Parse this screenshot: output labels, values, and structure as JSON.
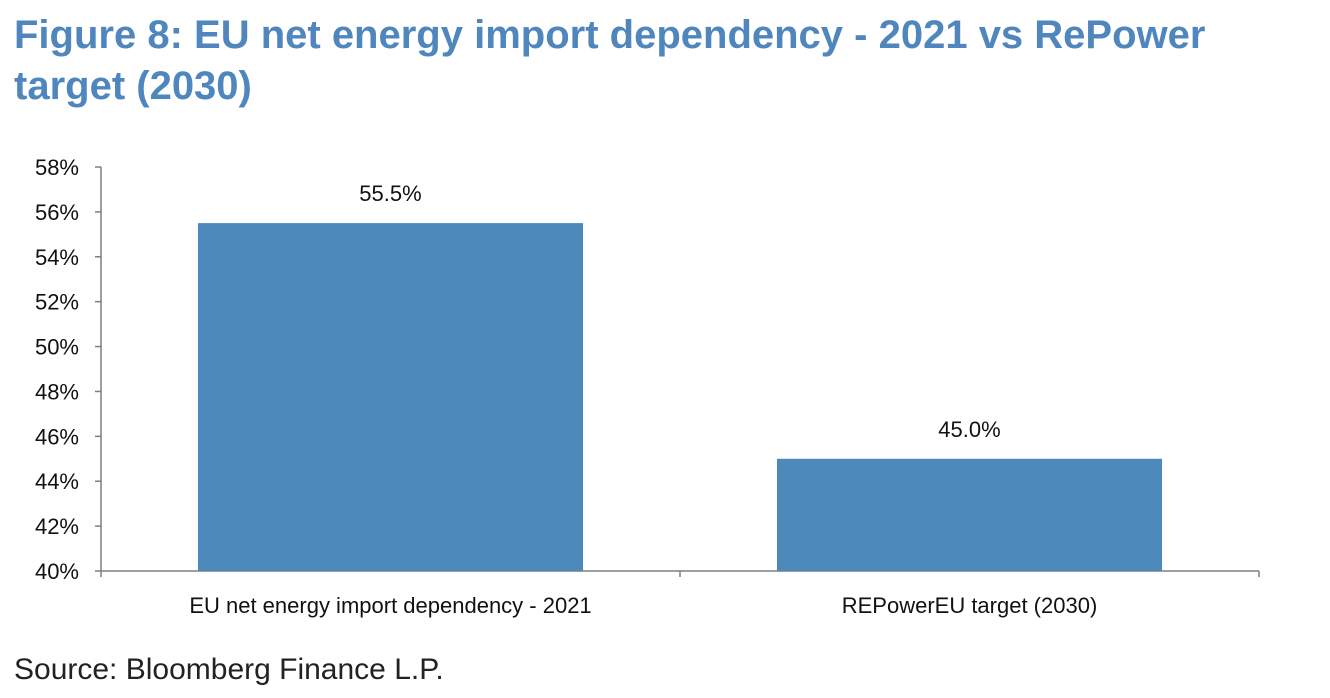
{
  "title": "Figure 8: EU net energy import dependency - 2021 vs RePower target (2030)",
  "source": "Source: Bloomberg Finance L.P.",
  "colors": {
    "bar": "#4e89bc",
    "title": "#4f86bd",
    "axis": "#7f7f7f",
    "text": "#111111"
  },
  "chart_data": {
    "type": "bar",
    "categories": [
      "EU net energy import dependency - 2021",
      "REPowerEU target (2030)"
    ],
    "values": [
      55.5,
      45.0
    ],
    "data_labels": [
      "55.5%",
      "45.0%"
    ],
    "ylim": [
      40,
      58
    ],
    "yticks": [
      40,
      42,
      44,
      46,
      48,
      50,
      52,
      54,
      56,
      58
    ],
    "ytick_labels": [
      "40%",
      "42%",
      "44%",
      "46%",
      "48%",
      "50%",
      "52%",
      "54%",
      "56%",
      "58%"
    ],
    "xlabel": "",
    "ylabel": "",
    "grid": false,
    "legend": "none"
  }
}
